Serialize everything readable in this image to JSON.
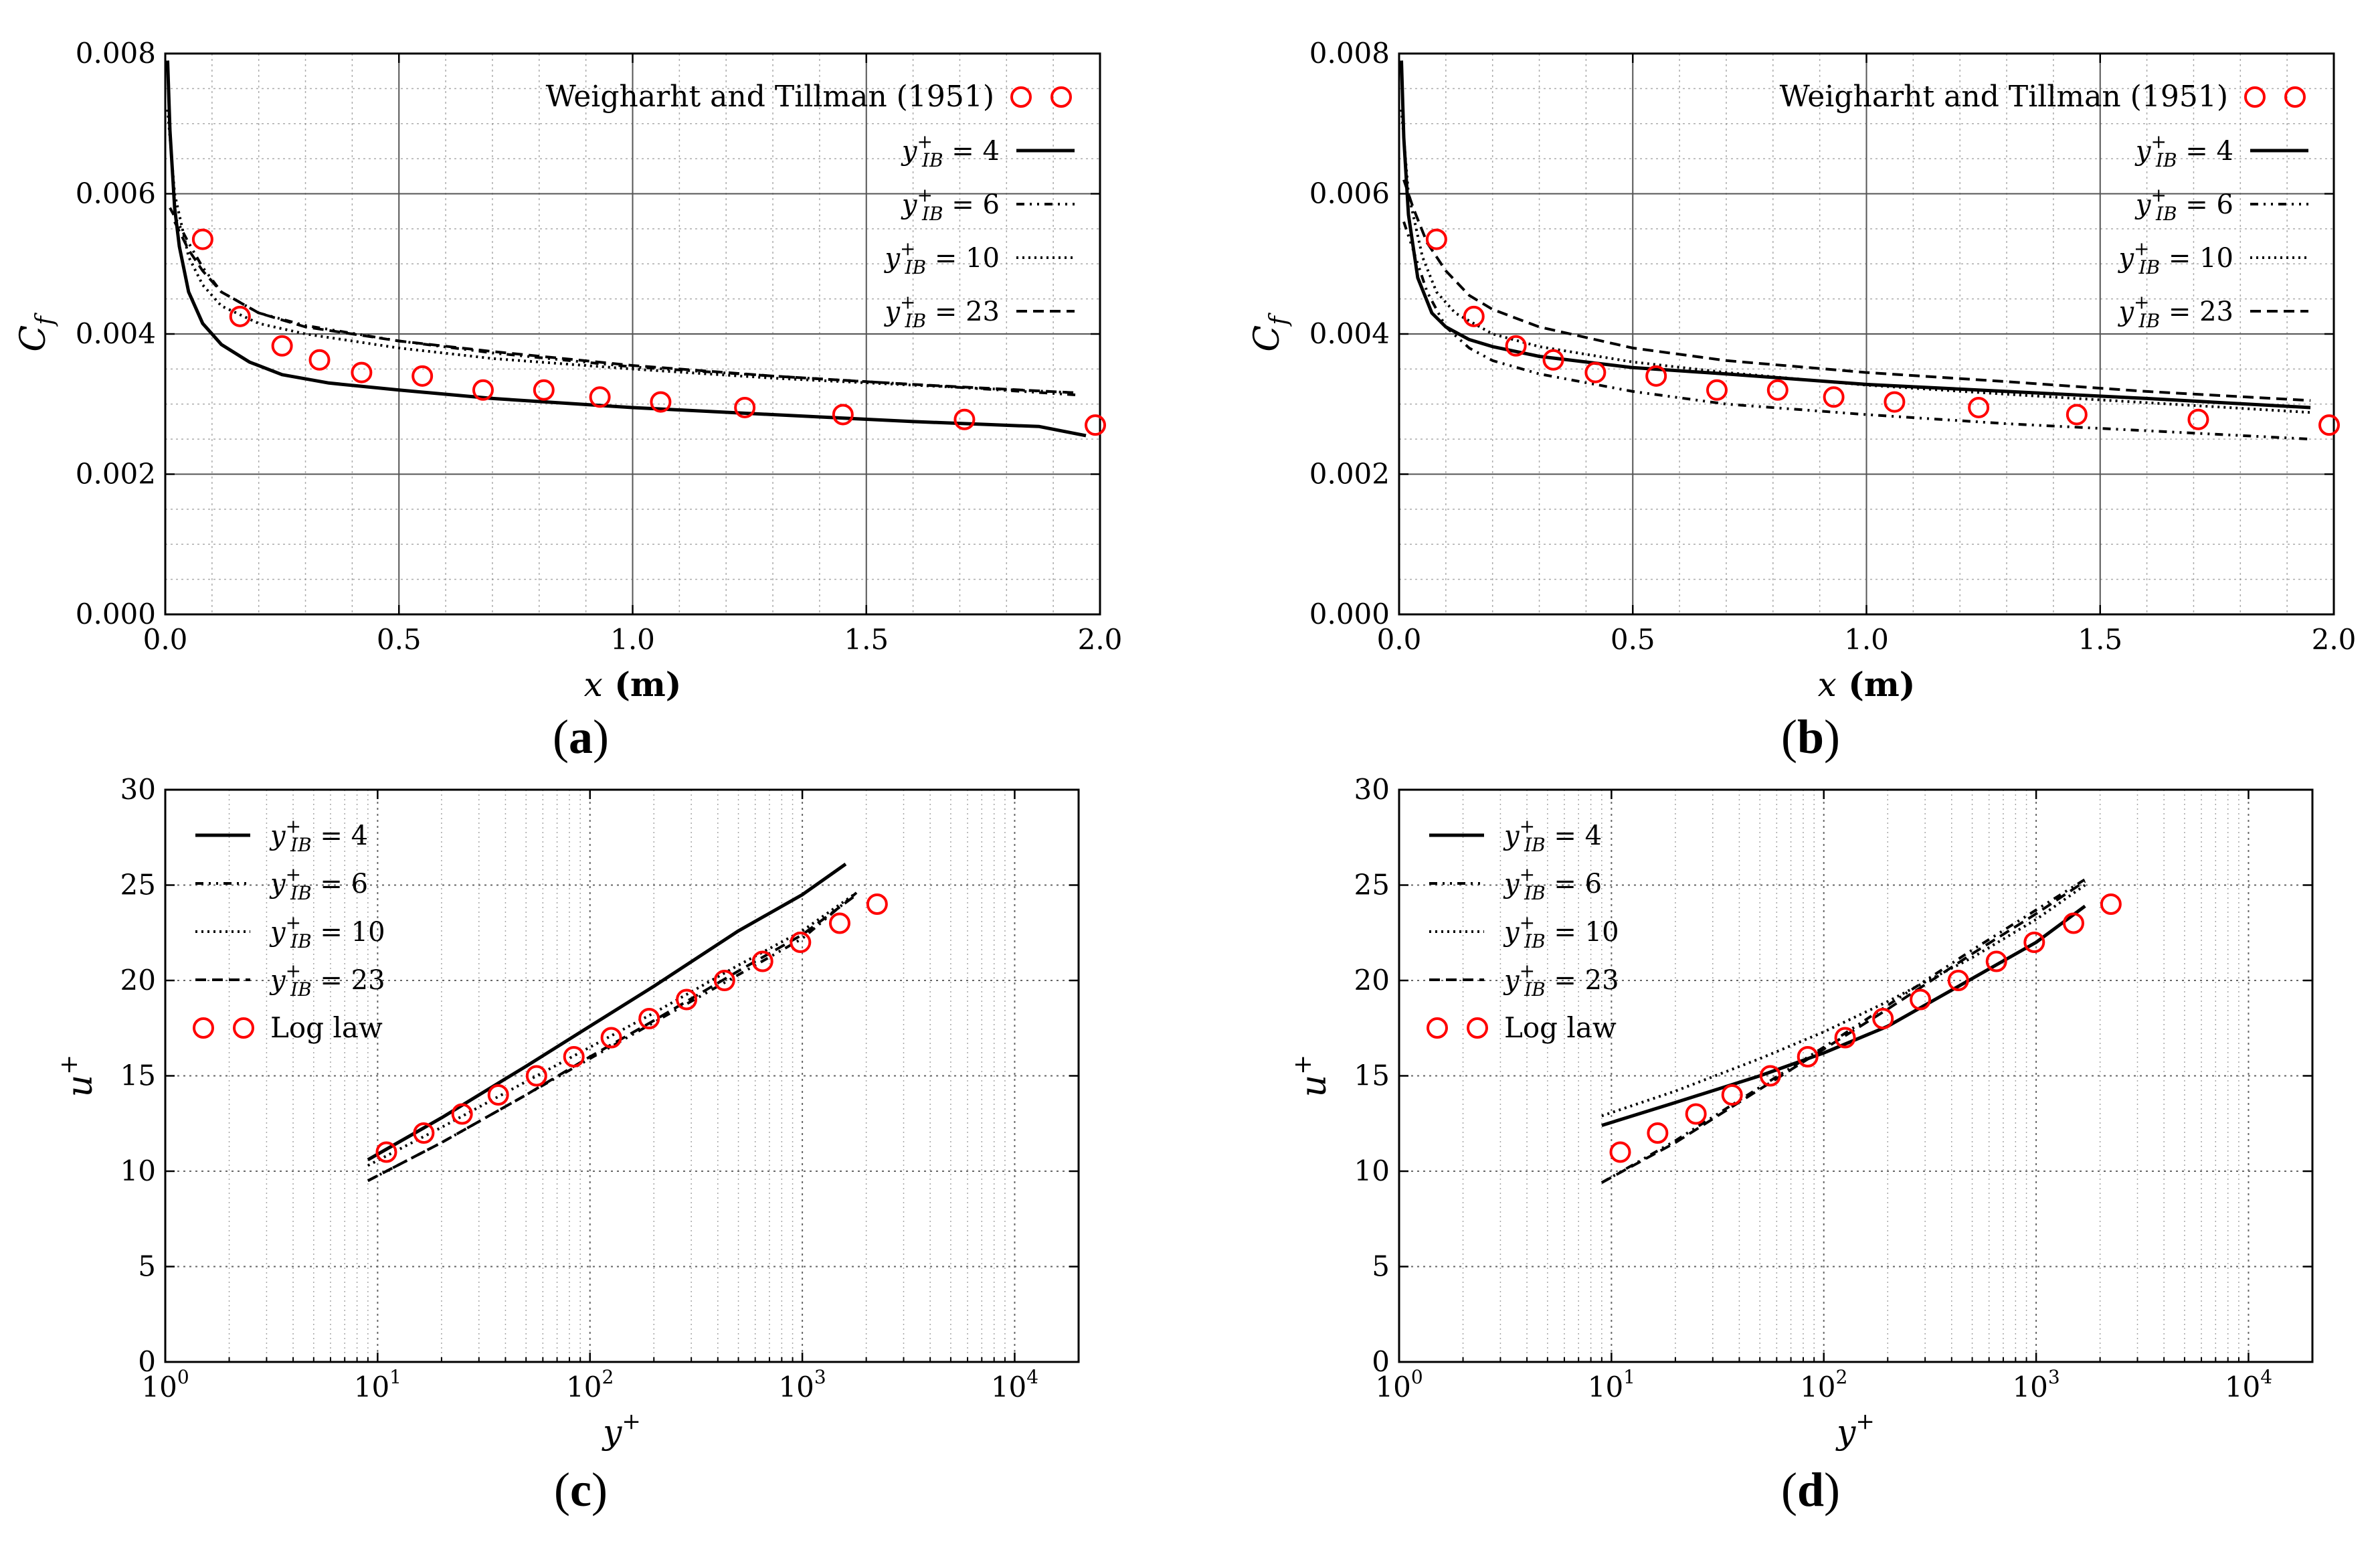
{
  "chart_data": [
    {
      "id": "a",
      "type": "line",
      "caption_letter": "a",
      "xlabel_var": "x",
      "xlabel_unit": " (m)",
      "ylabel_var": "C",
      "ylabel_sub": "f",
      "xscale": "linear",
      "xlim": [
        0.0,
        2.0
      ],
      "ylim": [
        0.0,
        0.008
      ],
      "xticks": [
        0.0,
        0.5,
        1.0,
        1.5,
        2.0
      ],
      "xtick_labels": [
        "0.0",
        "0.5",
        "1.0",
        "1.5",
        "2.0"
      ],
      "yticks": [
        0.0,
        0.002,
        0.004,
        0.006,
        0.008
      ],
      "ytick_labels": [
        "0.000",
        "0.002",
        "0.004",
        "0.006",
        "0.008"
      ],
      "legend_position": "top-right",
      "legend_type": "cf",
      "reference": {
        "name": "Weigharht and Tillman (1951)",
        "x": [
          0.08,
          0.16,
          0.25,
          0.33,
          0.42,
          0.55,
          0.68,
          0.81,
          0.93,
          1.06,
          1.24,
          1.45,
          1.71,
          1.99
        ],
        "y": [
          0.00535,
          0.00425,
          0.00383,
          0.00363,
          0.00345,
          0.0034,
          0.0032,
          0.0032,
          0.0031,
          0.00303,
          0.00295,
          0.00285,
          0.00278,
          0.0027
        ]
      },
      "series": [
        {
          "name": "4",
          "dash": "",
          "width": 5,
          "x": [
            0.005,
            0.01,
            0.02,
            0.03,
            0.05,
            0.08,
            0.12,
            0.18,
            0.25,
            0.35,
            0.5,
            0.7,
            1.0,
            1.3,
            1.6,
            1.87,
            1.97
          ],
          "y": [
            0.0079,
            0.0069,
            0.0058,
            0.00525,
            0.0046,
            0.00415,
            0.00385,
            0.0036,
            0.00342,
            0.0033,
            0.0032,
            0.00308,
            0.00295,
            0.00285,
            0.00275,
            0.00268,
            0.00255
          ]
        },
        {
          "name": "6",
          "dash": "12,8,3,8,3,8",
          "width": 4,
          "x": [
            0.01,
            0.03,
            0.05,
            0.08,
            0.12,
            0.2,
            0.3,
            0.5,
            0.7,
            1.0,
            1.3,
            1.6,
            1.95
          ],
          "y": [
            0.0058,
            0.00555,
            0.0053,
            0.00495,
            0.0046,
            0.0043,
            0.00412,
            0.0039,
            0.00373,
            0.00353,
            0.0034,
            0.00328,
            0.00313
          ]
        },
        {
          "name": "10",
          "dash": "3,6",
          "width": 4,
          "x": [
            0.005,
            0.02,
            0.05,
            0.08,
            0.12,
            0.2,
            0.3,
            0.5,
            0.7,
            1.0,
            1.3,
            1.6,
            1.95
          ],
          "y": [
            0.0072,
            0.006,
            0.0051,
            0.0047,
            0.0044,
            0.00415,
            0.004,
            0.0038,
            0.00365,
            0.0035,
            0.00337,
            0.00327,
            0.00316
          ]
        },
        {
          "name": "23",
          "dash": "16,9",
          "width": 4,
          "x": [
            0.02,
            0.05,
            0.08,
            0.12,
            0.2,
            0.3,
            0.5,
            0.7,
            1.0,
            1.3,
            1.6,
            1.95
          ],
          "y": [
            0.0056,
            0.0052,
            0.0049,
            0.0046,
            0.0043,
            0.0041,
            0.0039,
            0.00375,
            0.00355,
            0.0034,
            0.00328,
            0.00316
          ]
        }
      ]
    },
    {
      "id": "b",
      "type": "line",
      "caption_letter": "b",
      "xlabel_var": "x",
      "xlabel_unit": " (m)",
      "ylabel_var": "C",
      "ylabel_sub": "f",
      "xscale": "linear",
      "xlim": [
        0.0,
        2.0
      ],
      "ylim": [
        0.0,
        0.008
      ],
      "xticks": [
        0.0,
        0.5,
        1.0,
        1.5,
        2.0
      ],
      "xtick_labels": [
        "0.0",
        "0.5",
        "1.0",
        "1.5",
        "2.0"
      ],
      "yticks": [
        0.0,
        0.002,
        0.004,
        0.006,
        0.008
      ],
      "ytick_labels": [
        "0.000",
        "0.002",
        "0.004",
        "0.006",
        "0.008"
      ],
      "legend_position": "top-right",
      "legend_type": "cf",
      "reference": {
        "name": "Weigharht and Tillman (1951)",
        "x": [
          0.08,
          0.16,
          0.25,
          0.33,
          0.42,
          0.55,
          0.68,
          0.81,
          0.93,
          1.06,
          1.24,
          1.45,
          1.71,
          1.99
        ],
        "y": [
          0.00535,
          0.00425,
          0.00383,
          0.00363,
          0.00345,
          0.0034,
          0.0032,
          0.0032,
          0.0031,
          0.00303,
          0.00295,
          0.00285,
          0.00278,
          0.0027
        ]
      },
      "series": [
        {
          "name": "4",
          "dash": "",
          "width": 5,
          "x": [
            0.005,
            0.01,
            0.02,
            0.04,
            0.07,
            0.1,
            0.15,
            0.2,
            0.3,
            0.5,
            0.7,
            1.0,
            1.3,
            1.6,
            1.95
          ],
          "y": [
            0.0079,
            0.0068,
            0.0057,
            0.0048,
            0.0043,
            0.0041,
            0.00392,
            0.00382,
            0.00368,
            0.00352,
            0.00343,
            0.00328,
            0.00318,
            0.00308,
            0.00295
          ]
        },
        {
          "name": "6",
          "dash": "12,8,3,8,3,8",
          "width": 4,
          "x": [
            0.01,
            0.03,
            0.06,
            0.1,
            0.15,
            0.2,
            0.3,
            0.5,
            0.7,
            1.0,
            1.3,
            1.6,
            1.95
          ],
          "y": [
            0.0056,
            0.0052,
            0.0046,
            0.0041,
            0.0038,
            0.00362,
            0.00343,
            0.00318,
            0.003,
            0.00285,
            0.00272,
            0.00262,
            0.0025
          ]
        },
        {
          "name": "10",
          "dash": "3,6",
          "width": 4,
          "x": [
            0.005,
            0.02,
            0.05,
            0.08,
            0.12,
            0.2,
            0.3,
            0.5,
            0.7,
            1.0,
            1.3,
            1.6,
            1.95
          ],
          "y": [
            0.0072,
            0.006,
            0.0051,
            0.0046,
            0.0043,
            0.004,
            0.00382,
            0.0036,
            0.00345,
            0.00327,
            0.00314,
            0.00302,
            0.00288
          ]
        },
        {
          "name": "23",
          "dash": "16,9",
          "width": 4,
          "x": [
            0.01,
            0.03,
            0.06,
            0.1,
            0.15,
            0.2,
            0.3,
            0.5,
            0.7,
            1.0,
            1.3,
            1.6,
            1.95
          ],
          "y": [
            0.0062,
            0.0058,
            0.0053,
            0.0049,
            0.00455,
            0.00435,
            0.0041,
            0.0038,
            0.00362,
            0.00345,
            0.00332,
            0.00318,
            0.00305
          ]
        }
      ]
    },
    {
      "id": "c",
      "type": "line",
      "caption_letter": "c",
      "xlabel_var": "y",
      "xlabel_sup": "+",
      "ylabel_var": "u",
      "ylabel_sup": "+",
      "xscale": "log",
      "xlim": [
        1,
        20000
      ],
      "ylim": [
        0,
        30
      ],
      "xticks": [
        1,
        10,
        100,
        1000,
        10000
      ],
      "xtick_base": "10",
      "xtick_exps": [
        "0",
        "1",
        "2",
        "3",
        "4"
      ],
      "yticks": [
        0,
        5,
        10,
        15,
        20,
        25,
        30
      ],
      "ytick_labels": [
        "0",
        "5",
        "10",
        "15",
        "20",
        "25",
        "30"
      ],
      "legend_position": "top-left",
      "legend_type": "ulog",
      "reference": {
        "name": "Log law",
        "x": [
          11,
          16.5,
          25,
          37,
          56,
          84,
          126,
          190,
          285,
          430,
          650,
          980,
          1500,
          2250
        ],
        "y": [
          11,
          12,
          13,
          14,
          15,
          16,
          17,
          18,
          19,
          20,
          21,
          22,
          23,
          24
        ]
      },
      "series": [
        {
          "name": "4",
          "dash": "",
          "width": 5,
          "x": [
            9,
            20,
            50,
            100,
            200,
            500,
            1000,
            1600
          ],
          "y": [
            10.6,
            12.8,
            15.5,
            17.6,
            19.7,
            22.6,
            24.5,
            26.1
          ]
        },
        {
          "name": "6",
          "dash": "12,8,3,8,3,8",
          "width": 4,
          "x": [
            9,
            20,
            50,
            100,
            200,
            500,
            1000,
            1800
          ],
          "y": [
            9.5,
            11.5,
            14.0,
            15.9,
            17.8,
            20.3,
            22.2,
            24.6
          ]
        },
        {
          "name": "10",
          "dash": "3,6",
          "width": 4,
          "x": [
            9,
            20,
            50,
            100,
            200,
            500,
            1000,
            1800
          ],
          "y": [
            10.3,
            12.3,
            14.7,
            16.5,
            18.3,
            20.8,
            22.6,
            24.6
          ]
        },
        {
          "name": "23",
          "dash": "16,9",
          "width": 4,
          "x": [
            9,
            20,
            50,
            100,
            200,
            500,
            1000,
            1800
          ],
          "y": [
            9.5,
            11.5,
            14.0,
            16.0,
            17.9,
            20.5,
            22.4,
            24.5
          ]
        }
      ]
    },
    {
      "id": "d",
      "type": "line",
      "caption_letter": "d",
      "xlabel_var": "y",
      "xlabel_sup": "+",
      "ylabel_var": "u",
      "ylabel_sup": "+",
      "xscale": "log",
      "xlim": [
        1,
        20000
      ],
      "ylim": [
        0,
        30
      ],
      "xticks": [
        1,
        10,
        100,
        1000,
        10000
      ],
      "xtick_base": "10",
      "xtick_exps": [
        "0",
        "1",
        "2",
        "3",
        "4"
      ],
      "yticks": [
        0,
        5,
        10,
        15,
        20,
        25,
        30
      ],
      "ytick_labels": [
        "0",
        "5",
        "10",
        "15",
        "20",
        "25",
        "30"
      ],
      "legend_position": "top-left",
      "legend_type": "ulog",
      "reference": {
        "name": "Log law",
        "x": [
          11,
          16.5,
          25,
          37,
          56,
          84,
          126,
          190,
          285,
          430,
          650,
          980,
          1500,
          2250
        ],
        "y": [
          11,
          12,
          13,
          14,
          15,
          16,
          17,
          18,
          19,
          20,
          21,
          22,
          23,
          24
        ]
      },
      "series": [
        {
          "name": "4",
          "dash": "",
          "width": 5,
          "x": [
            9,
            20,
            50,
            100,
            200,
            500,
            1000,
            1700
          ],
          "y": [
            12.4,
            13.6,
            15.0,
            16.2,
            17.6,
            20.1,
            22.0,
            23.9
          ]
        },
        {
          "name": "6",
          "dash": "12,8,3,8,3,8",
          "width": 4,
          "x": [
            9,
            20,
            50,
            100,
            200,
            500,
            1000,
            1700
          ],
          "y": [
            9.4,
            11.6,
            14.4,
            16.5,
            18.7,
            21.6,
            23.7,
            25.3
          ]
        },
        {
          "name": "10",
          "dash": "3,6",
          "width": 4,
          "x": [
            9,
            20,
            50,
            100,
            200,
            500,
            1000,
            1700
          ],
          "y": [
            12.9,
            14.2,
            15.9,
            17.3,
            18.9,
            21.2,
            23.2,
            25.0
          ]
        },
        {
          "name": "23",
          "dash": "16,9",
          "width": 4,
          "x": [
            9,
            20,
            50,
            100,
            200,
            500,
            1000,
            1700
          ],
          "y": [
            9.4,
            11.5,
            14.3,
            16.4,
            18.5,
            21.4,
            23.5,
            25.2
          ]
        }
      ]
    }
  ],
  "legend_texts": {
    "series_var": "y",
    "series_sup": "+",
    "series_sub": "IB",
    "equals": " = "
  }
}
